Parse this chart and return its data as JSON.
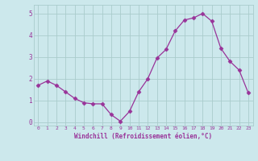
{
  "x": [
    0,
    1,
    2,
    3,
    4,
    5,
    6,
    7,
    8,
    9,
    10,
    11,
    12,
    13,
    14,
    15,
    16,
    17,
    18,
    19,
    20,
    21,
    22,
    23
  ],
  "y": [
    1.7,
    1.9,
    1.7,
    1.4,
    1.1,
    0.9,
    0.85,
    0.85,
    0.35,
    0.05,
    0.5,
    1.4,
    2.0,
    2.95,
    3.35,
    4.2,
    4.7,
    4.8,
    5.0,
    4.65,
    3.4,
    2.8,
    2.4,
    1.35
  ],
  "line_color": "#993399",
  "marker_color": "#993399",
  "bg_color": "#cce8ec",
  "grid_color": "#aacccc",
  "xlabel": "Windchill (Refroidissement éolien,°C)",
  "xlabel_color": "#993399",
  "xtick_color": "#993399",
  "ytick_color": "#993399",
  "ylim": [
    -0.15,
    5.4
  ],
  "xlim": [
    -0.5,
    23.5
  ],
  "yticks": [
    0,
    1,
    2,
    3,
    4,
    5
  ],
  "xticks": [
    0,
    1,
    2,
    3,
    4,
    5,
    6,
    7,
    8,
    9,
    10,
    11,
    12,
    13,
    14,
    15,
    16,
    17,
    18,
    19,
    20,
    21,
    22,
    23
  ]
}
